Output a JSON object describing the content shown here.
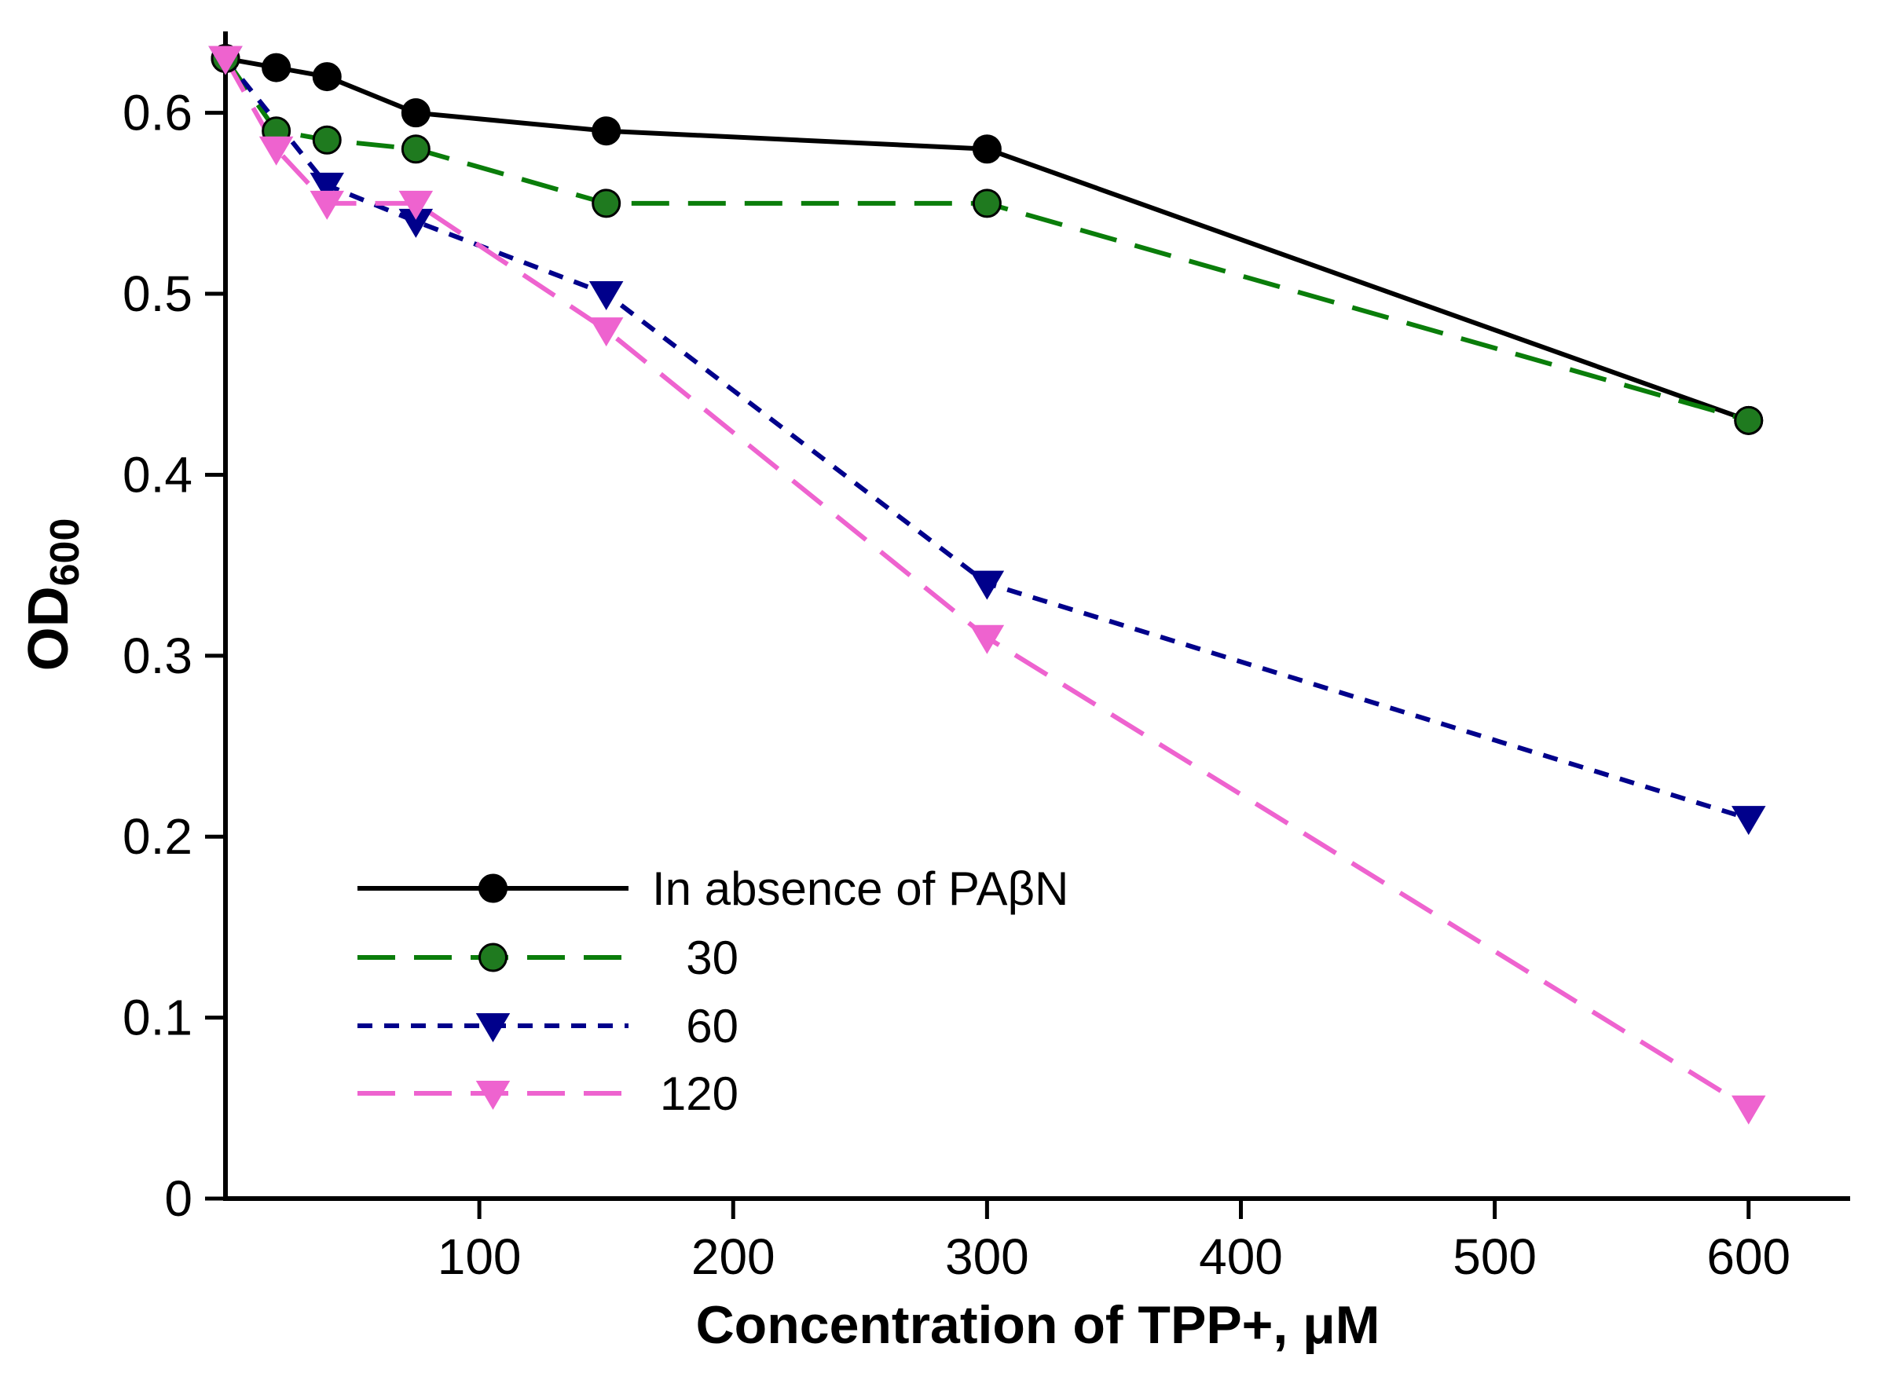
{
  "chart_data": {
    "type": "line",
    "title": "",
    "xlabel": "Concentration of TPP+, μM",
    "ylabel_main": "OD",
    "ylabel_sub": "600",
    "xlim": [
      0,
      640
    ],
    "ylim": [
      0,
      0.645
    ],
    "x_ticks": [
      100,
      200,
      300,
      400,
      500,
      600
    ],
    "y_ticks": [
      0,
      0.1,
      0.2,
      0.3,
      0.4,
      0.5,
      0.6
    ],
    "grid": false,
    "legend_position": "lower-left-inside",
    "series": [
      {
        "name": "In absence of PAβN",
        "color": "#000000",
        "marker": "circle",
        "marker_fill": "#000000",
        "dash": "solid",
        "x": [
          0,
          20,
          40,
          75,
          150,
          300,
          600
        ],
        "y": [
          0.63,
          0.625,
          0.62,
          0.6,
          0.59,
          0.58,
          0.43
        ]
      },
      {
        "name": "30",
        "color": "#0a7d0a",
        "marker": "circle",
        "marker_fill": "#1f7a1f",
        "dash": "long-dash",
        "x": [
          0,
          20,
          40,
          75,
          150,
          300,
          600
        ],
        "y": [
          0.63,
          0.59,
          0.585,
          0.58,
          0.55,
          0.55,
          0.43
        ]
      },
      {
        "name": "60",
        "color": "#00008B",
        "marker": "triangle-down",
        "marker_fill": "#00008B",
        "dash": "short-dash",
        "x": [
          0,
          40,
          75,
          150,
          300,
          600
        ],
        "y": [
          0.63,
          0.56,
          0.54,
          0.5,
          0.34,
          0.21
        ]
      },
      {
        "name": "120",
        "color": "#EE63CF",
        "marker": "triangle-down",
        "marker_fill": "#EE63CF",
        "dash": "long-dash",
        "x": [
          0,
          20,
          40,
          75,
          150,
          300,
          600
        ],
        "y": [
          0.63,
          0.58,
          0.55,
          0.55,
          0.48,
          0.31,
          0.05
        ]
      }
    ]
  }
}
